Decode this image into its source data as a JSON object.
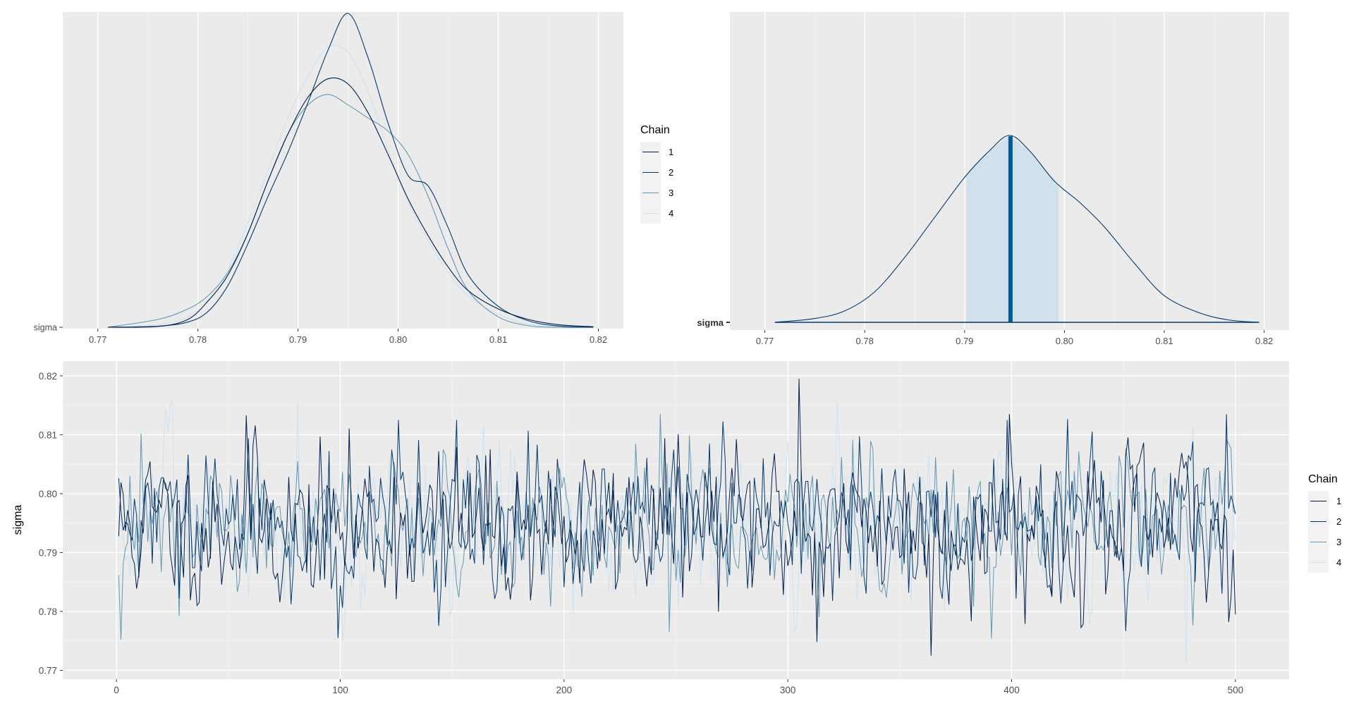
{
  "colors": {
    "panel_bg": "#ebebeb",
    "grid_major": "#ffffff",
    "grid_minor": "#f5f5f5",
    "chain_1": "#011f4b",
    "chain_2": "#03396c",
    "chain_3": "#6497b1",
    "chain_4": "#cfe2f0",
    "interval_fill": "#d1e1ec",
    "median_line": "#005b96",
    "density_line": "#03396c",
    "tick": "#333333"
  },
  "chart_data": [
    {
      "id": "density",
      "type": "line",
      "title": "",
      "xlabel": "",
      "ylabel": "",
      "ylabel_tick": "sigma",
      "xlim": [
        0.7665,
        0.8225
      ],
      "xticks": [
        0.77,
        0.78,
        0.79,
        0.8,
        0.81,
        0.82
      ],
      "xtick_labels": [
        "0.77",
        "0.78",
        "0.79",
        "0.80",
        "0.81",
        "0.82"
      ],
      "x": [
        0.771,
        0.776,
        0.779,
        0.781,
        0.783,
        0.785,
        0.787,
        0.789,
        0.791,
        0.793,
        0.795,
        0.797,
        0.799,
        0.801,
        0.803,
        0.805,
        0.807,
        0.81,
        0.813,
        0.816,
        0.8195
      ],
      "legend": {
        "title": "Chain",
        "position": "right",
        "labels": [
          "1",
          "2",
          "3",
          "4"
        ]
      },
      "series": [
        {
          "name": "1",
          "values": [
            0.0,
            0.003,
            0.03,
            0.1,
            0.2,
            0.36,
            0.56,
            0.74,
            0.88,
            0.95,
            0.93,
            0.82,
            0.66,
            0.49,
            0.35,
            0.23,
            0.14,
            0.07,
            0.03,
            0.01,
            0.002
          ]
        },
        {
          "name": "2",
          "values": [
            0.0,
            0.004,
            0.02,
            0.06,
            0.16,
            0.32,
            0.5,
            0.67,
            0.86,
            1.06,
            1.2,
            1.03,
            0.78,
            0.58,
            0.54,
            0.38,
            0.2,
            0.08,
            0.025,
            0.005,
            0.0
          ]
        },
        {
          "name": "3",
          "values": [
            0.0,
            0.03,
            0.07,
            0.12,
            0.21,
            0.36,
            0.56,
            0.74,
            0.85,
            0.89,
            0.85,
            0.8,
            0.75,
            0.66,
            0.5,
            0.3,
            0.14,
            0.04,
            0.006,
            0.0,
            0.0
          ]
        },
        {
          "name": "4",
          "values": [
            0.0,
            0.01,
            0.04,
            0.1,
            0.22,
            0.4,
            0.6,
            0.8,
            0.96,
            1.07,
            1.05,
            0.9,
            0.68,
            0.48,
            0.33,
            0.21,
            0.12,
            0.05,
            0.012,
            0.002,
            0.0
          ]
        }
      ]
    },
    {
      "id": "areas",
      "type": "area",
      "title": "",
      "xlabel": "",
      "ylabel": "",
      "ylabel_tick": "sigma",
      "xlim": [
        0.7665,
        0.8225
      ],
      "xticks": [
        0.77,
        0.78,
        0.79,
        0.8,
        0.81,
        0.82
      ],
      "xtick_labels": [
        "0.77",
        "0.78",
        "0.79",
        "0.80",
        "0.81",
        "0.82"
      ],
      "x": [
        0.771,
        0.775,
        0.778,
        0.781,
        0.784,
        0.787,
        0.79,
        0.7925,
        0.7945,
        0.7965,
        0.799,
        0.8015,
        0.804,
        0.807,
        0.81,
        0.8135,
        0.8165,
        0.8195
      ],
      "values": [
        0.0,
        0.02,
        0.06,
        0.16,
        0.34,
        0.55,
        0.76,
        0.9,
        0.98,
        0.9,
        0.74,
        0.63,
        0.5,
        0.31,
        0.14,
        0.05,
        0.012,
        0.0
      ],
      "interval": [
        0.7902,
        0.7994
      ],
      "median": 0.7946
    },
    {
      "id": "trace",
      "type": "line",
      "title": "",
      "xlabel": "",
      "ylabel": "sigma",
      "xlim": [
        -24,
        524
      ],
      "ylim": [
        0.7685,
        0.8225
      ],
      "xticks": [
        0,
        100,
        200,
        300,
        400,
        500
      ],
      "xtick_labels": [
        "0",
        "100",
        "200",
        "300",
        "400",
        "500"
      ],
      "yticks": [
        0.77,
        0.78,
        0.79,
        0.8,
        0.81,
        0.82
      ],
      "ytick_labels": [
        "0.77",
        "0.78",
        "0.79",
        "0.80",
        "0.81",
        "0.82"
      ],
      "x_range": [
        1,
        500
      ],
      "legend": {
        "title": "Chain",
        "position": "right",
        "labels": [
          "1",
          "2",
          "3",
          "4"
        ]
      },
      "series": [
        {
          "name": "1",
          "center": 0.7945,
          "spread": 0.0062,
          "seed": 11,
          "spikes": [
            [
              305,
              0.8195
            ],
            [
              313,
              0.7748
            ],
            [
              364,
              0.7725
            ],
            [
              399,
              0.8135
            ],
            [
              497,
              0.7782
            ],
            [
              58,
              0.8133
            ]
          ]
        },
        {
          "name": "2",
          "center": 0.7945,
          "spread": 0.0058,
          "seed": 29,
          "spikes": [
            [
              99,
              0.7755
            ],
            [
              126,
              0.8125
            ],
            [
              152,
              0.8125
            ],
            [
              265,
              0.8085
            ],
            [
              398,
              0.8125
            ]
          ]
        },
        {
          "name": "3",
          "center": 0.7945,
          "spread": 0.0052,
          "seed": 47,
          "spikes": [
            [
              247,
              0.7765
            ],
            [
              28,
              0.7792
            ],
            [
              243,
              0.8135
            ]
          ]
        },
        {
          "name": "4",
          "center": 0.7945,
          "spread": 0.006,
          "seed": 83,
          "spikes": [
            [
              81,
              0.8155
            ],
            [
              322,
              0.8155
            ],
            [
              478,
              0.7712
            ],
            [
              101,
              0.775
            ],
            [
              481,
              0.8115
            ]
          ]
        }
      ]
    }
  ]
}
